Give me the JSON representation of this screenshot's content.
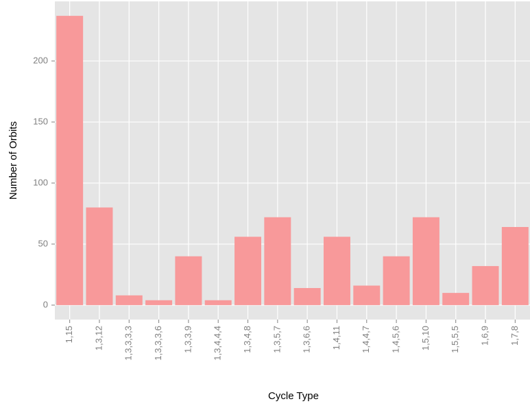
{
  "chart_data": {
    "type": "bar",
    "xlabel": "Cycle Type",
    "ylabel": "Number of Orbits",
    "categories": [
      "1,15",
      "1,3,12",
      "1,3,3,3,3",
      "1,3,3,3,6",
      "1,3,3,9",
      "1,3,4,4,4",
      "1,3,4,8",
      "1,3,5,7",
      "1,3,6,6",
      "1,4,11",
      "1,4,4,7",
      "1,4,5,6",
      "1,5,10",
      "1,5,5,5",
      "1,6,9",
      "1,7,8"
    ],
    "values": [
      237,
      80,
      8,
      4,
      40,
      4,
      56,
      72,
      14,
      56,
      16,
      40,
      72,
      10,
      32,
      64
    ],
    "color": "#f8999a",
    "ylim": [
      -11.85,
      248.85
    ],
    "yticks": [
      0,
      50,
      100,
      150,
      200
    ],
    "grid": true
  }
}
